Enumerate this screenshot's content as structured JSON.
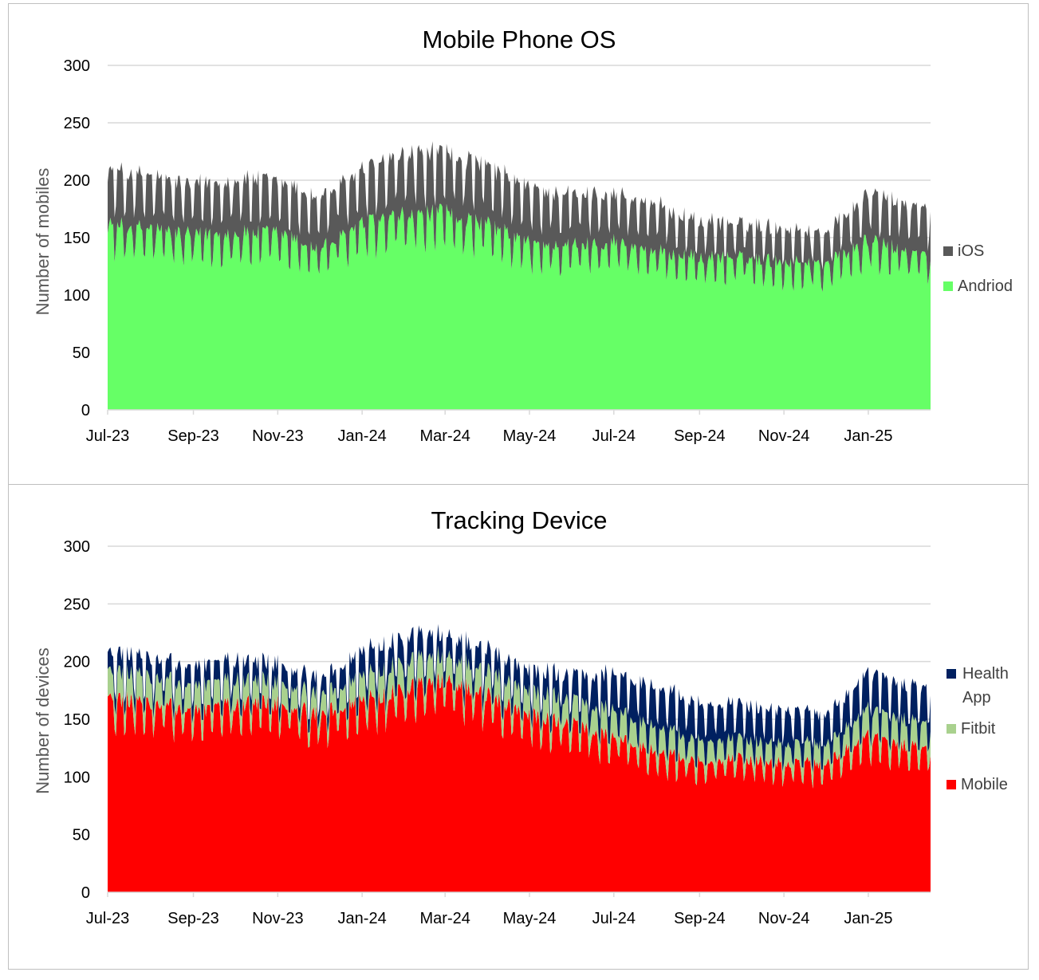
{
  "colors": {
    "ios": "#595959",
    "android": "#66ff66",
    "health_app": "#002060",
    "fitbit": "#a9d18e",
    "mobile": "#ff0000",
    "grid": "#d9d9d9"
  },
  "chart_data": [
    {
      "type": "area",
      "stacked": true,
      "title": "Mobile Phone OS",
      "ylabel": "Number of mobiles",
      "xlabel": "",
      "ylim": [
        0,
        300
      ],
      "yticks": [
        "0",
        "50",
        "100",
        "150",
        "200",
        "250",
        "300"
      ],
      "xticks": [
        "Jul-23",
        "Sep-23",
        "Nov-23",
        "Jan-24",
        "Mar-24",
        "May-24",
        "Jul-24",
        "Sep-24",
        "Nov-24",
        "Jan-25"
      ],
      "x_start": "2023-07-01",
      "x_end": "2025-02-15",
      "grid": "horizontal",
      "legend_position": "right",
      "legend": [
        "iOS",
        "Andriod"
      ],
      "series": [
        {
          "name": "Andriod",
          "color": "#66ff66",
          "monthly_values": [
            {
              "date": "2023-07-01",
              "value": 155
            },
            {
              "date": "2023-08-01",
              "value": 152
            },
            {
              "date": "2023-09-01",
              "value": 146
            },
            {
              "date": "2023-10-01",
              "value": 148
            },
            {
              "date": "2023-11-01",
              "value": 148
            },
            {
              "date": "2023-12-01",
              "value": 135
            },
            {
              "date": "2024-01-01",
              "value": 155
            },
            {
              "date": "2024-02-01",
              "value": 163
            },
            {
              "date": "2024-03-01",
              "value": 165
            },
            {
              "date": "2024-04-01",
              "value": 155
            },
            {
              "date": "2024-05-01",
              "value": 140
            },
            {
              "date": "2024-06-01",
              "value": 138
            },
            {
              "date": "2024-07-01",
              "value": 142
            },
            {
              "date": "2024-08-01",
              "value": 133
            },
            {
              "date": "2024-09-01",
              "value": 128
            },
            {
              "date": "2024-10-01",
              "value": 128
            },
            {
              "date": "2024-11-01",
              "value": 124
            },
            {
              "date": "2024-12-01",
              "value": 123
            },
            {
              "date": "2025-01-01",
              "value": 142
            },
            {
              "date": "2025-02-15",
              "value": 128
            }
          ]
        },
        {
          "name": "iOS",
          "color": "#595959",
          "monthly_values": [
            {
              "date": "2023-07-01",
              "value": 45
            },
            {
              "date": "2023-08-01",
              "value": 43
            },
            {
              "date": "2023-09-01",
              "value": 42
            },
            {
              "date": "2023-10-01",
              "value": 45
            },
            {
              "date": "2023-11-01",
              "value": 43
            },
            {
              "date": "2023-12-01",
              "value": 42
            },
            {
              "date": "2024-01-01",
              "value": 45
            },
            {
              "date": "2024-02-01",
              "value": 50
            },
            {
              "date": "2024-03-01",
              "value": 50
            },
            {
              "date": "2024-04-01",
              "value": 48
            },
            {
              "date": "2024-05-01",
              "value": 45
            },
            {
              "date": "2024-06-01",
              "value": 42
            },
            {
              "date": "2024-07-01",
              "value": 40
            },
            {
              "date": "2024-08-01",
              "value": 38
            },
            {
              "date": "2024-09-01",
              "value": 30
            },
            {
              "date": "2024-10-01",
              "value": 28
            },
            {
              "date": "2024-11-01",
              "value": 28
            },
            {
              "date": "2024-12-01",
              "value": 25
            },
            {
              "date": "2025-01-01",
              "value": 40
            },
            {
              "date": "2025-02-15",
              "value": 38
            }
          ]
        }
      ]
    },
    {
      "type": "area",
      "stacked": true,
      "title": "Tracking Device",
      "ylabel": "Number of devices",
      "xlabel": "",
      "ylim": [
        0,
        300
      ],
      "yticks": [
        "0",
        "50",
        "100",
        "150",
        "200",
        "250",
        "300"
      ],
      "xticks": [
        "Jul-23",
        "Sep-23",
        "Nov-23",
        "Jan-24",
        "Mar-24",
        "May-24",
        "Jul-24",
        "Sep-24",
        "Nov-24",
        "Jan-25"
      ],
      "x_start": "2023-07-01",
      "x_end": "2025-02-15",
      "grid": "horizontal",
      "legend_position": "right",
      "legend": [
        "Health App",
        "Fitbit",
        "Mobile"
      ],
      "series": [
        {
          "name": "Mobile",
          "color": "#ff0000",
          "monthly_values": [
            {
              "date": "2023-07-01",
              "value": 163
            },
            {
              "date": "2023-08-01",
              "value": 158
            },
            {
              "date": "2023-09-01",
              "value": 152
            },
            {
              "date": "2023-10-01",
              "value": 157
            },
            {
              "date": "2023-11-01",
              "value": 158
            },
            {
              "date": "2023-12-01",
              "value": 148
            },
            {
              "date": "2024-01-01",
              "value": 160
            },
            {
              "date": "2024-02-01",
              "value": 170
            },
            {
              "date": "2024-03-01",
              "value": 178
            },
            {
              "date": "2024-04-01",
              "value": 165
            },
            {
              "date": "2024-05-01",
              "value": 148
            },
            {
              "date": "2024-06-01",
              "value": 140
            },
            {
              "date": "2024-07-01",
              "value": 130
            },
            {
              "date": "2024-08-01",
              "value": 118
            },
            {
              "date": "2024-09-01",
              "value": 110
            },
            {
              "date": "2024-10-01",
              "value": 112
            },
            {
              "date": "2024-11-01",
              "value": 108
            },
            {
              "date": "2024-12-01",
              "value": 108
            },
            {
              "date": "2025-01-01",
              "value": 130
            },
            {
              "date": "2025-02-15",
              "value": 118
            }
          ]
        },
        {
          "name": "Fitbit",
          "color": "#a9d18e",
          "monthly_values": [
            {
              "date": "2023-07-01",
              "value": 22
            },
            {
              "date": "2023-08-01",
              "value": 22
            },
            {
              "date": "2023-09-01",
              "value": 20
            },
            {
              "date": "2023-10-01",
              "value": 20
            },
            {
              "date": "2023-11-01",
              "value": 18
            },
            {
              "date": "2023-12-01",
              "value": 16
            },
            {
              "date": "2024-01-01",
              "value": 20
            },
            {
              "date": "2024-02-01",
              "value": 22
            },
            {
              "date": "2024-03-01",
              "value": 20
            },
            {
              "date": "2024-04-01",
              "value": 20
            },
            {
              "date": "2024-05-01",
              "value": 20
            },
            {
              "date": "2024-06-01",
              "value": 20
            },
            {
              "date": "2024-07-01",
              "value": 22
            },
            {
              "date": "2024-08-01",
              "value": 20
            },
            {
              "date": "2024-09-01",
              "value": 18
            },
            {
              "date": "2024-10-01",
              "value": 16
            },
            {
              "date": "2024-11-01",
              "value": 16
            },
            {
              "date": "2024-12-01",
              "value": 16
            },
            {
              "date": "2025-01-01",
              "value": 22
            },
            {
              "date": "2025-02-15",
              "value": 20
            }
          ]
        },
        {
          "name": "Health App",
          "color": "#002060",
          "monthly_values": [
            {
              "date": "2023-07-01",
              "value": 15
            },
            {
              "date": "2023-08-01",
              "value": 15
            },
            {
              "date": "2023-09-01",
              "value": 16
            },
            {
              "date": "2023-10-01",
              "value": 16
            },
            {
              "date": "2023-11-01",
              "value": 15
            },
            {
              "date": "2023-12-01",
              "value": 13
            },
            {
              "date": "2024-01-01",
              "value": 20
            },
            {
              "date": "2024-02-01",
              "value": 21
            },
            {
              "date": "2024-03-01",
              "value": 17
            },
            {
              "date": "2024-04-01",
              "value": 18
            },
            {
              "date": "2024-05-01",
              "value": 17
            },
            {
              "date": "2024-06-01",
              "value": 20
            },
            {
              "date": "2024-07-01",
              "value": 30
            },
            {
              "date": "2024-08-01",
              "value": 33
            },
            {
              "date": "2024-09-01",
              "value": 30
            },
            {
              "date": "2024-10-01",
              "value": 28
            },
            {
              "date": "2024-11-01",
              "value": 28
            },
            {
              "date": "2024-12-01",
              "value": 24
            },
            {
              "date": "2025-01-01",
              "value": 30
            },
            {
              "date": "2025-02-15",
              "value": 28
            }
          ]
        }
      ]
    }
  ]
}
